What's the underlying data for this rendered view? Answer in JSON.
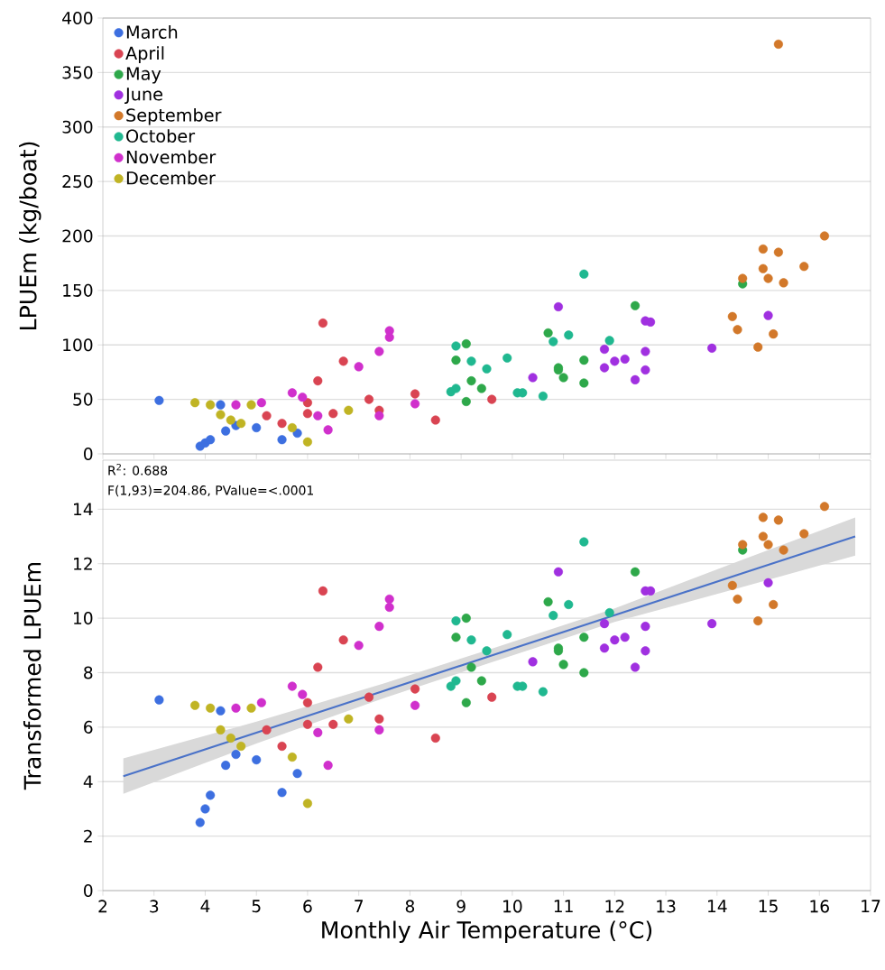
{
  "chart_data": [
    {
      "type": "scatter",
      "ylabel": "LPUEm (kg/boat)",
      "xlim": [
        2,
        17
      ],
      "xticks": [
        2,
        3,
        4,
        5,
        6,
        7,
        8,
        9,
        10,
        11,
        12,
        13,
        14,
        15,
        16,
        17
      ],
      "ylim": [
        0,
        400
      ],
      "yticks": [
        0,
        50,
        100,
        150,
        200,
        250,
        300,
        350,
        400
      ],
      "grid": "y",
      "legend": "top left",
      "marker": "circle",
      "tick_labels": "y",
      "series": [
        {
          "name": "March",
          "color": "#3d6fe0",
          "x": [
            3.1,
            3.9,
            4.0,
            4.1,
            4.3,
            4.4,
            4.6,
            5.0,
            5.5,
            5.8
          ],
          "values": [
            49,
            7,
            10,
            13,
            45,
            21,
            26,
            24,
            13,
            19
          ]
        },
        {
          "name": "April",
          "color": "#d94452",
          "x": [
            5.2,
            5.5,
            6.0,
            6.0,
            6.2,
            6.3,
            6.5,
            6.7,
            7.2,
            7.4,
            8.1,
            8.5,
            9.6
          ],
          "values": [
            35,
            28,
            47,
            37,
            67,
            120,
            37,
            85,
            50,
            40,
            55,
            31,
            50
          ]
        },
        {
          "name": "May",
          "color": "#2ea84a",
          "x": [
            8.9,
            9.1,
            9.1,
            9.2,
            9.4,
            10.7,
            10.9,
            10.9,
            11.0,
            11.4,
            11.4,
            12.4,
            14.5
          ],
          "values": [
            86,
            101,
            48,
            67,
            60,
            111,
            79,
            77,
            70,
            86,
            65,
            136,
            156
          ]
        },
        {
          "name": "June",
          "color": "#a030e0",
          "x": [
            10.4,
            10.9,
            11.8,
            11.8,
            12.0,
            12.2,
            12.4,
            12.6,
            12.6,
            12.6,
            12.7,
            13.9,
            15.0
          ],
          "values": [
            70,
            135,
            79,
            96,
            85,
            87,
            68,
            122,
            94,
            77,
            121,
            97,
            127
          ]
        },
        {
          "name": "September",
          "color": "#d2782a",
          "x": [
            14.3,
            14.4,
            14.5,
            14.8,
            14.9,
            14.9,
            15.0,
            15.1,
            15.2,
            15.2,
            15.3,
            15.7,
            16.1
          ],
          "values": [
            126,
            114,
            161,
            98,
            188,
            170,
            161,
            110,
            185,
            376,
            157,
            172,
            200
          ]
        },
        {
          "name": "October",
          "color": "#20b890",
          "x": [
            8.8,
            8.9,
            8.9,
            9.2,
            9.5,
            9.9,
            10.1,
            10.2,
            10.6,
            10.8,
            11.1,
            11.4,
            11.9
          ],
          "values": [
            57,
            99,
            60,
            85,
            78,
            88,
            56,
            56,
            53,
            103,
            109,
            165,
            104
          ]
        },
        {
          "name": "November",
          "color": "#d030cc",
          "x": [
            4.6,
            5.1,
            5.7,
            5.9,
            6.2,
            6.4,
            7.0,
            7.4,
            7.4,
            7.6,
            7.6,
            8.1
          ],
          "values": [
            45,
            47,
            56,
            52,
            35,
            22,
            80,
            94,
            35,
            113,
            107,
            46
          ]
        },
        {
          "name": "December",
          "color": "#c0b424",
          "x": [
            3.8,
            4.1,
            4.3,
            4.5,
            4.7,
            4.9,
            5.7,
            6.0,
            6.8
          ],
          "values": [
            47,
            45,
            36,
            31,
            28,
            45,
            24,
            11,
            40
          ]
        }
      ]
    },
    {
      "type": "scatter",
      "xlabel": "Monthly Air Temperature (°C)",
      "ylabel": "Transformed LPUEm",
      "xlim": [
        2,
        17
      ],
      "xticks": [
        2,
        3,
        4,
        5,
        6,
        7,
        8,
        9,
        10,
        11,
        12,
        13,
        14,
        15,
        16,
        17
      ],
      "ylim": [
        0,
        15.8
      ],
      "yticks": [
        0,
        2,
        4,
        6,
        8,
        10,
        12,
        14
      ],
      "grid": "y",
      "marker": "circle",
      "annotations": [
        "R$^{2}$: 0.688",
        "F(1,93)=204.86, PValue=<.0001"
      ],
      "series": [
        {
          "type": "line",
          "marker": "none",
          "color": "#4a72c8",
          "x": [
            2.4,
            5.0,
            7.5,
            9.5,
            12.0,
            14.5,
            16.7
          ],
          "values": [
            4.2,
            5.8,
            7.34,
            8.57,
            10.11,
            11.65,
            13.0
          ],
          "lower": [
            3.55,
            5.4,
            7.07,
            8.32,
            9.86,
            11.15,
            12.3
          ],
          "upper": [
            4.85,
            6.2,
            7.61,
            8.82,
            10.36,
            12.15,
            13.7
          ]
        },
        {
          "color": "#3d6fe0",
          "x": [
            3.1,
            3.9,
            4.0,
            4.1,
            4.3,
            4.4,
            4.6,
            5.0,
            5.5,
            5.8
          ],
          "values": [
            7.0,
            2.5,
            3.0,
            3.5,
            6.6,
            4.6,
            5.0,
            4.8,
            3.6,
            4.3
          ]
        },
        {
          "color": "#d94452",
          "x": [
            5.2,
            5.5,
            6.0,
            6.0,
            6.2,
            6.3,
            6.5,
            6.7,
            7.2,
            7.4,
            8.1,
            8.5,
            9.6
          ],
          "values": [
            5.9,
            5.3,
            6.9,
            6.1,
            8.2,
            11.0,
            6.1,
            9.2,
            7.1,
            6.3,
            7.4,
            5.6,
            7.1
          ]
        },
        {
          "color": "#2ea84a",
          "x": [
            8.9,
            9.1,
            9.1,
            9.2,
            9.4,
            10.7,
            10.9,
            10.9,
            11.0,
            11.4,
            11.4,
            12.4,
            14.5
          ],
          "values": [
            9.3,
            10.0,
            6.9,
            8.2,
            7.7,
            10.6,
            8.9,
            8.8,
            8.3,
            9.3,
            8.0,
            11.7,
            12.5
          ]
        },
        {
          "color": "#a030e0",
          "x": [
            10.4,
            10.9,
            11.8,
            11.8,
            12.0,
            12.2,
            12.4,
            12.6,
            12.6,
            12.6,
            12.7,
            13.9,
            15.0
          ],
          "values": [
            8.4,
            11.7,
            8.9,
            9.8,
            9.2,
            9.3,
            8.2,
            11.0,
            9.7,
            8.8,
            11.0,
            9.8,
            11.3
          ]
        },
        {
          "color": "#d2782a",
          "x": [
            14.3,
            14.4,
            14.5,
            14.8,
            14.9,
            14.9,
            15.0,
            15.1,
            15.2,
            15.3,
            15.7,
            16.1
          ],
          "values": [
            11.2,
            10.7,
            12.7,
            9.9,
            13.7,
            13.0,
            12.7,
            10.5,
            13.6,
            12.5,
            13.1,
            14.1
          ]
        },
        {
          "color": "#20b890",
          "x": [
            8.8,
            8.9,
            8.9,
            9.2,
            9.5,
            9.9,
            10.1,
            10.2,
            10.6,
            10.8,
            11.1,
            11.4,
            11.9
          ],
          "values": [
            7.5,
            9.9,
            7.7,
            9.2,
            8.8,
            9.4,
            7.5,
            7.5,
            7.3,
            10.1,
            10.5,
            12.8,
            10.2
          ]
        },
        {
          "color": "#d030cc",
          "x": [
            4.6,
            5.1,
            5.7,
            5.9,
            6.2,
            6.4,
            7.0,
            7.4,
            7.4,
            7.6,
            7.6,
            8.1
          ],
          "values": [
            6.7,
            6.9,
            7.5,
            7.2,
            5.8,
            4.6,
            9.0,
            9.7,
            5.9,
            10.7,
            10.4,
            6.8
          ]
        },
        {
          "color": "#c0b424",
          "x": [
            3.8,
            4.1,
            4.3,
            4.5,
            4.7,
            4.9,
            5.7,
            6.0,
            6.8
          ],
          "values": [
            6.8,
            6.7,
            5.9,
            5.6,
            5.3,
            6.7,
            4.9,
            3.2,
            6.3
          ]
        }
      ]
    }
  ]
}
